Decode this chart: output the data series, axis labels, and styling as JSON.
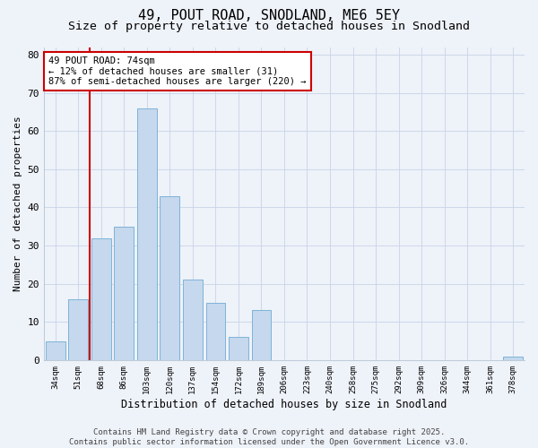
{
  "title": "49, POUT ROAD, SNODLAND, ME6 5EY",
  "subtitle": "Size of property relative to detached houses in Snodland",
  "xlabel": "Distribution of detached houses by size in Snodland",
  "ylabel": "Number of detached properties",
  "bar_labels": [
    "34sqm",
    "51sqm",
    "68sqm",
    "86sqm",
    "103sqm",
    "120sqm",
    "137sqm",
    "154sqm",
    "172sqm",
    "189sqm",
    "206sqm",
    "223sqm",
    "240sqm",
    "258sqm",
    "275sqm",
    "292sqm",
    "309sqm",
    "326sqm",
    "344sqm",
    "361sqm",
    "378sqm"
  ],
  "bar_values": [
    5,
    16,
    32,
    35,
    66,
    43,
    21,
    15,
    6,
    13,
    0,
    0,
    0,
    0,
    0,
    0,
    0,
    0,
    0,
    0,
    1
  ],
  "bar_color": "#c5d8ed",
  "bar_edgecolor": "#7eb3d8",
  "red_line_x": 1.5,
  "annotation_text": "49 POUT ROAD: 74sqm\n← 12% of detached houses are smaller (31)\n87% of semi-detached houses are larger (220) →",
  "annotation_box_color": "#ffffff",
  "annotation_box_edgecolor": "#cc0000",
  "red_line_color": "#cc0000",
  "ylim": [
    0,
    82
  ],
  "yticks": [
    0,
    10,
    20,
    30,
    40,
    50,
    60,
    70,
    80
  ],
  "background_color": "#eef2f9",
  "footer_text": "Contains HM Land Registry data © Crown copyright and database right 2025.\nContains public sector information licensed under the Open Government Licence v3.0.",
  "title_fontsize": 11,
  "subtitle_fontsize": 9.5,
  "annotation_fontsize": 7.5,
  "footer_fontsize": 6.5
}
